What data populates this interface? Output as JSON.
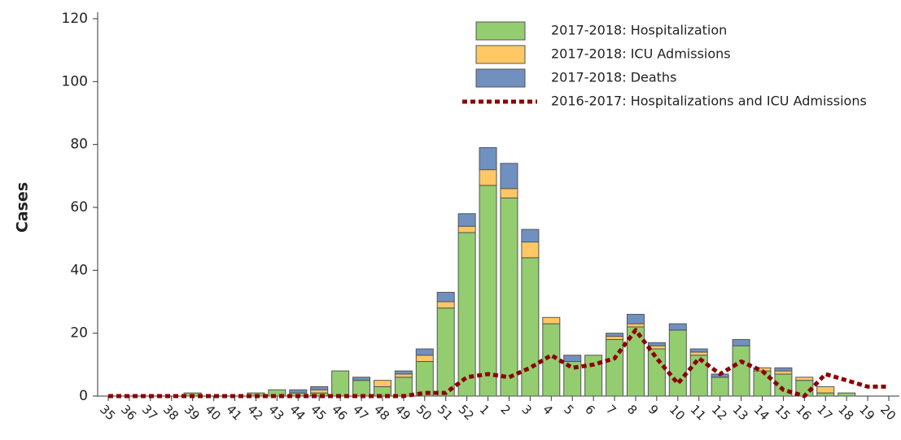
{
  "chart_data": {
    "type": "bar",
    "y_label": "Cases",
    "categories": [
      "35",
      "36",
      "37",
      "38",
      "39",
      "40",
      "41",
      "42",
      "43",
      "44",
      "45",
      "46",
      "47",
      "48",
      "49",
      "50",
      "51",
      "52",
      "1",
      "2",
      "3",
      "4",
      "5",
      "6",
      "7",
      "8",
      "9",
      "10",
      "11",
      "12",
      "13",
      "14",
      "15",
      "16",
      "17",
      "18",
      "19",
      "20"
    ],
    "series": [
      {
        "name": "2017-2018: Hospitalization",
        "color": "#93cd6f",
        "values": [
          0,
          0,
          0,
          0,
          1,
          0,
          0,
          1,
          2,
          1,
          1,
          8,
          5,
          3,
          6,
          11,
          28,
          52,
          67,
          63,
          44,
          23,
          11,
          13,
          18,
          22,
          15,
          21,
          13,
          6,
          16,
          8,
          7,
          5,
          1,
          1,
          0,
          0
        ]
      },
      {
        "name": "2017-2018: ICU Admissions",
        "color": "#ffc766",
        "values": [
          0,
          0,
          0,
          0,
          0,
          0,
          0,
          0,
          0,
          0,
          1,
          0,
          0,
          2,
          1,
          2,
          2,
          2,
          5,
          3,
          5,
          2,
          0,
          0,
          1,
          1,
          1,
          0,
          1,
          0,
          0,
          1,
          1,
          1,
          2,
          0,
          0,
          0
        ]
      },
      {
        "name": "2017-2018: Deaths",
        "color": "#7090c0",
        "values": [
          0,
          0,
          0,
          0,
          0,
          0,
          0,
          0,
          0,
          1,
          1,
          0,
          1,
          0,
          1,
          2,
          3,
          4,
          7,
          8,
          4,
          0,
          2,
          0,
          1,
          3,
          1,
          2,
          1,
          1,
          2,
          0,
          1,
          0,
          0,
          0,
          0,
          0
        ]
      },
      {
        "name": "2016-2017: Hospitalizations and ICU Admissions",
        "color": "#8b0000",
        "type": "line",
        "values": [
          0,
          0,
          0,
          0,
          0,
          0,
          0,
          0,
          0,
          0,
          0,
          0,
          0,
          0,
          0,
          1,
          1,
          6,
          7,
          6,
          9,
          13,
          9,
          10,
          12,
          21,
          12,
          4,
          12,
          7,
          11,
          8,
          2,
          0,
          7,
          5,
          3,
          3
        ]
      }
    ],
    "ylim": [
      0,
      120
    ],
    "yticks": [
      0,
      20,
      40,
      60,
      80,
      100,
      120
    ]
  }
}
